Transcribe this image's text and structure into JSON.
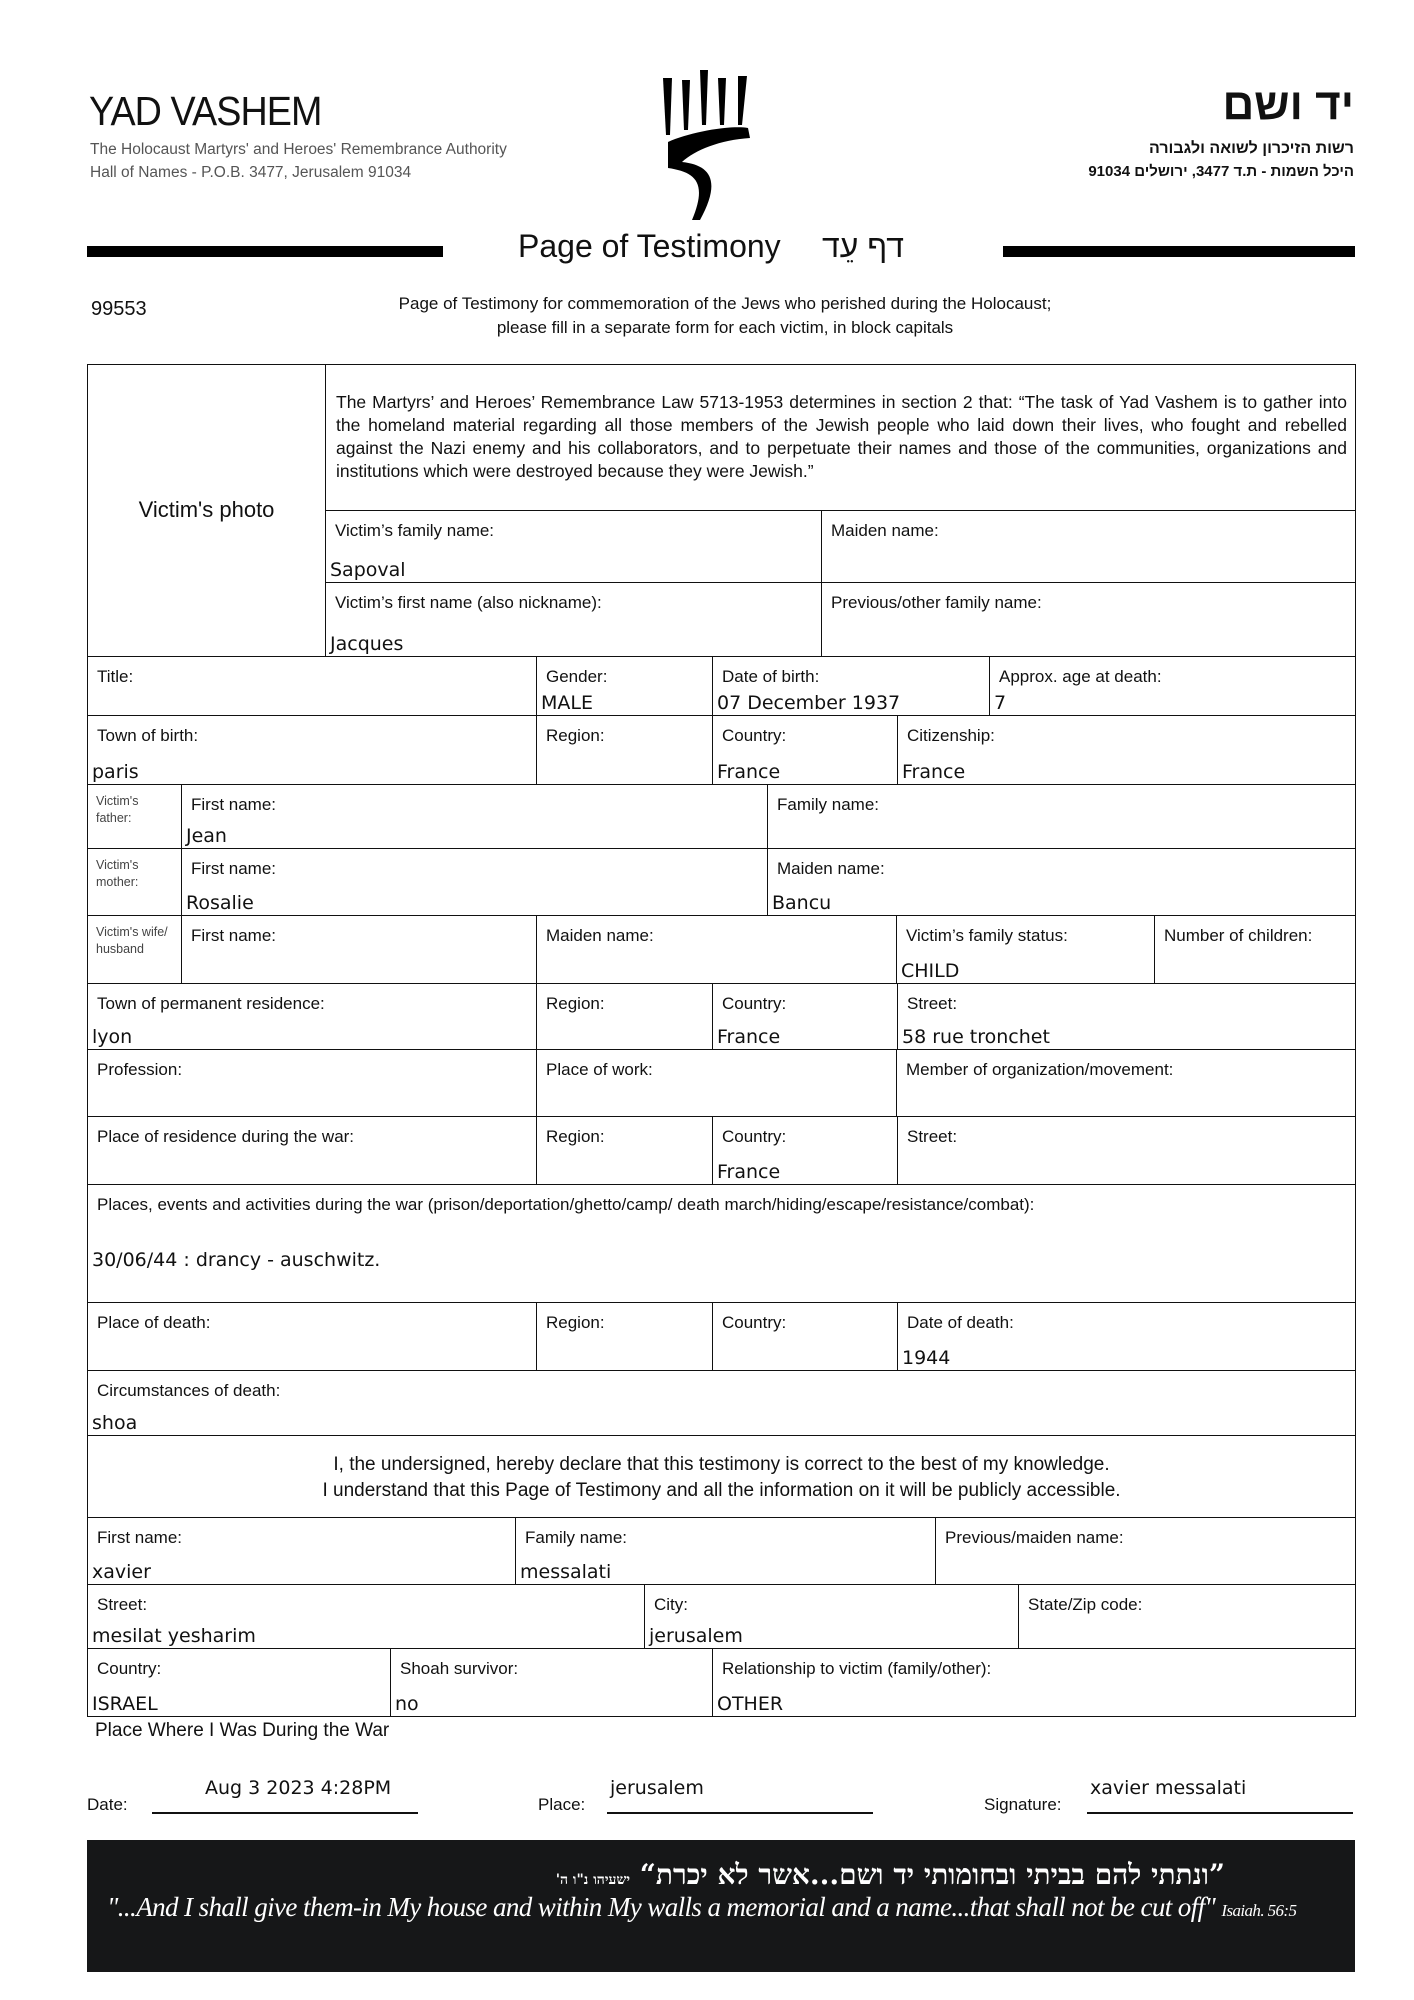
{
  "header": {
    "org_name": "YAD VASHEM",
    "org_subtitle": "The Holocaust Martyrs' and Heroes' Remembrance Authority",
    "org_address": "Hall of Names - P.O.B. 3477, Jerusalem 91034",
    "org_name_hebrew": "יד ושם",
    "org_subtitle_hebrew": "רשות הזיכרון לשואה ולגבורה",
    "org_address_hebrew": "היכל השמות - ת.ד 3477, ירושלים 91034",
    "title": "Page of Testimony",
    "title_hebrew": "דף עֵד",
    "form_number": "99553",
    "intro_line1": "Page of Testimony for commemoration of the Jews who perished during the Holocaust;",
    "intro_line2": "please fill in a separate form for each victim, in block capitals"
  },
  "fields": {
    "photo": {
      "label": "Victim's photo"
    },
    "law": {
      "label": "The Martyrs’ and Heroes’ Remembrance Law 5713-1953 determines in section 2 that: “The task of Yad Vashem is to gather into the homeland material regarding all those members of the Jewish people who laid down their lives, who fought and rebelled against the Nazi enemy and his collaborators, and to perpetuate their names and those of the communities, organizations and institutions which were destroyed because they were Jewish.”"
    },
    "family_name": {
      "label": "Victim’s family name:",
      "value": "Sapoval"
    },
    "maiden_name": {
      "label": "Maiden name:",
      "value": ""
    },
    "first_name": {
      "label": "Victim’s first name (also nickname):",
      "value": "Jacques"
    },
    "previous_name": {
      "label": "Previous/other family name:",
      "value": ""
    },
    "title": {
      "label": "Title:",
      "value": ""
    },
    "gender": {
      "label": "Gender:",
      "value": "MALE"
    },
    "dob": {
      "label": "Date of birth:",
      "value": "07 December 1937"
    },
    "age": {
      "label": "Approx. age at death:",
      "value": "7"
    },
    "town_birth": {
      "label": "Town of birth:",
      "value": "paris"
    },
    "region_birth": {
      "label": "Region:",
      "value": ""
    },
    "country_birth": {
      "label": "Country:",
      "value": "France"
    },
    "citizenship": {
      "label": "Citizenship:",
      "value": "France"
    },
    "father_tag": {
      "label": "Victim's father:"
    },
    "father_first": {
      "label": "First name:",
      "value": "Jean"
    },
    "father_family": {
      "label": "Family name:",
      "value": ""
    },
    "mother_tag": {
      "label": "Victim's mother:"
    },
    "mother_first": {
      "label": "First name:",
      "value": "Rosalie"
    },
    "mother_maiden": {
      "label": "Maiden name:",
      "value": "Bancu"
    },
    "spouse_tag": {
      "label": "Victim's wife/ husband"
    },
    "spouse_first": {
      "label": "First name:",
      "value": ""
    },
    "spouse_maiden": {
      "label": "Maiden name:",
      "value": ""
    },
    "family_status": {
      "label": "Victim’s family status:",
      "value": "CHILD"
    },
    "children": {
      "label": "Number of children:",
      "value": ""
    },
    "res_town": {
      "label": "Town of permanent residence:",
      "value": "lyon"
    },
    "res_region": {
      "label": "Region:",
      "value": ""
    },
    "res_country": {
      "label": "Country:",
      "value": "France"
    },
    "res_street": {
      "label": "Street:",
      "value": "58 rue tronchet"
    },
    "profession": {
      "label": "Profession:",
      "value": ""
    },
    "work": {
      "label": "Place of work:",
      "value": ""
    },
    "member": {
      "label": "Member of organization/movement:",
      "value": ""
    },
    "war_res": {
      "label": "Place of residence during the war:",
      "value": ""
    },
    "war_region": {
      "label": "Region:",
      "value": ""
    },
    "war_country": {
      "label": "Country:",
      "value": "France"
    },
    "war_street": {
      "label": "Street:",
      "value": ""
    },
    "places": {
      "label": "Places, events and activities during the war (prison/deportation/ghetto/camp/ death march/hiding/escape/resistance/combat):",
      "value": "30/06/44 : drancy - auschwitz."
    },
    "death_place": {
      "label": "Place of death:",
      "value": ""
    },
    "death_region": {
      "label": "Region:",
      "value": ""
    },
    "death_country": {
      "label": "Country:",
      "value": ""
    },
    "death_date": {
      "label": "Date of death:",
      "value": "1944"
    },
    "circumstances": {
      "label": "Circumstances of death:",
      "value": "shoa"
    },
    "declaration": {
      "label": "I, the undersigned, hereby declare that this testimony is correct to the best of my knowledge.\nI understand that this Page of Testimony and all the information on it will be publicly accessible."
    },
    "w_first": {
      "label": "First name:",
      "value": "xavier"
    },
    "w_family": {
      "label": "Family name:",
      "value": "messalati"
    },
    "w_prev": {
      "label": "Previous/maiden name:",
      "value": ""
    },
    "w_street": {
      "label": "Street:",
      "value": "mesilat yesharim"
    },
    "w_city": {
      "label": "City:",
      "value": "jerusalem"
    },
    "w_zip": {
      "label": "State/Zip code:",
      "value": ""
    },
    "w_country": {
      "label": "Country:",
      "value": "ISRAEL"
    },
    "w_survivor": {
      "label": "Shoah survivor:",
      "value": "no"
    },
    "w_relationship": {
      "label": "Relationship to victim (family/other):",
      "value": "OTHER"
    }
  },
  "footer": {
    "war_place_label": "Place Where I Was During the War",
    "date_label": "Date:",
    "date_value": "Aug 3 2023  4:28PM",
    "place_label": "Place:",
    "place_value": "jerusalem",
    "signature_label": "Signature:",
    "signature_value": "xavier messalati",
    "quote_hebrew": "”ונתתי להם בביתי ובחומותי יד ושם...אשר לא יכרת“",
    "quote_hebrew_ref": "ישעיהו נ\"ו ה'",
    "quote_english": "\"...And I shall give them-in My house and within My walls a memorial and a name...that shall not be cut off\"",
    "quote_english_ref": "Isaiah. 56:5",
    "banner_color": "#161718"
  }
}
